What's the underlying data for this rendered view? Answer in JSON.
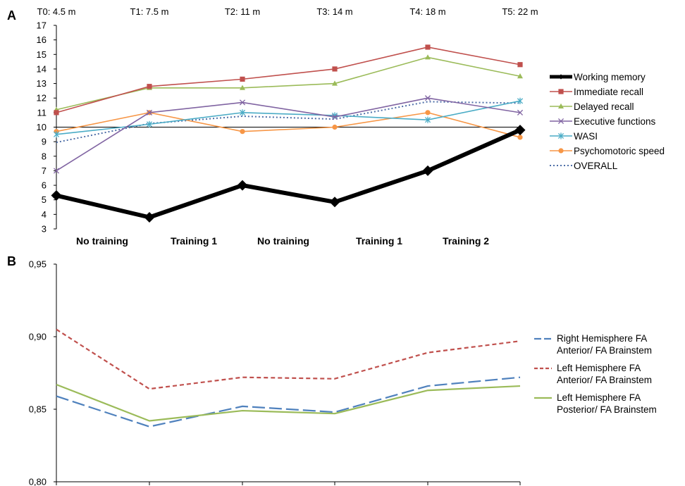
{
  "chart_data": [
    {
      "type": "line",
      "panel_label": "A",
      "timepoints": [
        "T0: 4.5 m",
        "T1: 7.5 m",
        "T2: 11 m",
        "T3: 14 m",
        "T4: 18 m",
        "T5: 22 m"
      ],
      "phases": [
        "No training",
        "Training 1",
        "No training",
        "Training 1",
        "Training 2"
      ],
      "ylim": [
        3,
        17
      ],
      "yticks": [
        "3",
        "4",
        "5",
        "6",
        "7",
        "8",
        "9",
        "10",
        "11",
        "12",
        "13",
        "14",
        "15",
        "16",
        "17"
      ],
      "reference_line": 10,
      "series": [
        {
          "name": "Working memory",
          "color": "#000000",
          "marker": "diamond",
          "values": [
            5.3,
            3.8,
            6.0,
            4.85,
            7.0,
            9.8
          ]
        },
        {
          "name": "Immediate recall",
          "color": "#c0504d",
          "marker": "square",
          "values": [
            11.0,
            12.8,
            13.3,
            14.0,
            15.5,
            14.3
          ]
        },
        {
          "name": "Delayed recall",
          "color": "#9bbb59",
          "marker": "triangle",
          "values": [
            11.2,
            12.7,
            12.7,
            13.0,
            14.8,
            13.5
          ]
        },
        {
          "name": "Executive functions",
          "color": "#8064a2",
          "marker": "x",
          "values": [
            7.0,
            11.0,
            11.7,
            10.7,
            12.0,
            11.0
          ]
        },
        {
          "name": "WASI",
          "color": "#4bacc6",
          "marker": "star",
          "values": [
            9.5,
            10.2,
            11.0,
            10.8,
            10.5,
            11.8
          ]
        },
        {
          "name": "Psychomotoric speed",
          "color": "#f79646",
          "marker": "circle",
          "values": [
            9.7,
            11.0,
            9.7,
            10.0,
            11.0,
            9.3
          ]
        },
        {
          "name": "OVERALL",
          "color": "#4f6fa8",
          "marker": "none",
          "dotted": true,
          "values": [
            8.95,
            10.25,
            10.75,
            10.55,
            11.75,
            11.65
          ]
        }
      ],
      "legend_position": "right"
    },
    {
      "type": "line",
      "panel_label": "B",
      "ylim": [
        0.8,
        0.95
      ],
      "yticks": [
        "0,80",
        "0,85",
        "0,90",
        "0,95"
      ],
      "series": [
        {
          "name": "Right Hemisphere FA Anterior/ FA Brainstem",
          "color": "#4f81bd",
          "style": "longdash",
          "values": [
            0.859,
            0.838,
            0.852,
            0.848,
            0.866,
            0.872
          ]
        },
        {
          "name": "Left Hemisphere FA Anterior/ FA Brainstem",
          "color": "#c0504d",
          "style": "dashed",
          "values": [
            0.905,
            0.864,
            0.872,
            0.871,
            0.889,
            0.897
          ]
        },
        {
          "name": "Left Hemisphere FA Posterior/ FA Brainstem",
          "color": "#9bbb59",
          "style": "solid",
          "values": [
            0.867,
            0.842,
            0.849,
            0.847,
            0.863,
            0.866
          ]
        }
      ],
      "legend_position": "right"
    }
  ]
}
